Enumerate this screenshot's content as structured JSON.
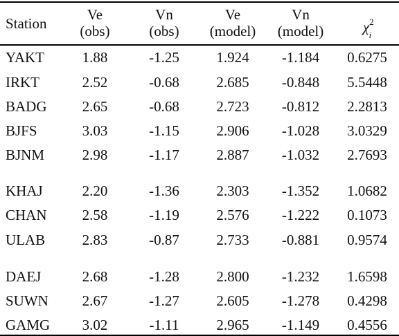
{
  "headers": [
    {
      "line1": "Station",
      "line2": ""
    },
    {
      "line1": "Ve",
      "line2": "(obs)"
    },
    {
      "line1": "Vn",
      "line2": "(obs)"
    },
    {
      "line1": "Ve",
      "line2": "(model)"
    },
    {
      "line1": "Vn",
      "line2": "(model)"
    },
    {
      "symbol": "χ",
      "sup": "2",
      "sub": "i"
    }
  ],
  "rows": [
    [
      "YAKT",
      "1.88",
      "-1.25",
      "1.924",
      "-1.184",
      "0.6275"
    ],
    [
      "IRKT",
      "2.52",
      "-0.68",
      "2.685",
      "-0.848",
      "5.5448"
    ],
    [
      "BADG",
      "2.65",
      "-0.68",
      "2.723",
      "-0.812",
      "2.2813"
    ],
    [
      "BJFS",
      "3.03",
      "-1.15",
      "2.906",
      "-1.028",
      "3.0329"
    ],
    [
      "BJNM",
      "2.98",
      "-1.17",
      "2.887",
      "-1.032",
      "2.7693"
    ],
    [
      "KHAJ",
      "2.20",
      "-1.36",
      "2.303",
      "-1.352",
      "1.0682"
    ],
    [
      "CHAN",
      "2.58",
      "-1.19",
      "2.576",
      "-1.222",
      "0.1073"
    ],
    [
      "ULAB",
      "2.83",
      "-0.87",
      "2.733",
      "-0.881",
      "0.9574"
    ],
    [
      "DAEJ",
      "2.68",
      "-1.28",
      "2.800",
      "-1.232",
      "1.6598"
    ],
    [
      "SUWN",
      "2.67",
      "-1.27",
      "2.605",
      "-1.278",
      "0.4298"
    ],
    [
      "GAMG",
      "3.02",
      "-1.11",
      "2.965",
      "-1.149",
      "0.4556"
    ]
  ]
}
